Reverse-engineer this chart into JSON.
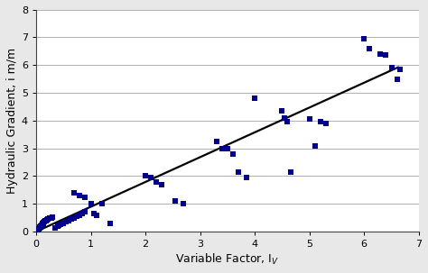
{
  "scatter_x": [
    0.02,
    0.03,
    0.04,
    0.05,
    0.06,
    0.07,
    0.08,
    0.09,
    0.1,
    0.11,
    0.12,
    0.13,
    0.14,
    0.15,
    0.16,
    0.18,
    0.2,
    0.22,
    0.25,
    0.28,
    0.3,
    0.35,
    0.4,
    0.42,
    0.45,
    0.5,
    0.55,
    0.6,
    0.65,
    0.7,
    0.75,
    0.8,
    0.85,
    0.9,
    0.7,
    0.8,
    0.9,
    1.0,
    1.05,
    1.1,
    1.2,
    1.35,
    2.0,
    2.1,
    2.2,
    2.3,
    2.55,
    2.7,
    3.3,
    3.4,
    3.5,
    3.6,
    3.7,
    3.85,
    4.0,
    4.5,
    4.55,
    4.6,
    4.65,
    5.0,
    5.1,
    5.2,
    5.3,
    6.0,
    6.1,
    6.3,
    6.4,
    6.5,
    6.6,
    6.65
  ],
  "scatter_y": [
    0.05,
    0.07,
    0.09,
    0.11,
    0.13,
    0.15,
    0.17,
    0.2,
    0.22,
    0.25,
    0.28,
    0.3,
    0.32,
    0.35,
    0.38,
    0.4,
    0.42,
    0.45,
    0.48,
    0.5,
    0.52,
    0.12,
    0.18,
    0.22,
    0.25,
    0.3,
    0.35,
    0.4,
    0.45,
    0.5,
    0.55,
    0.6,
    0.65,
    0.7,
    1.4,
    1.3,
    1.25,
    1.0,
    0.65,
    0.6,
    1.0,
    0.3,
    2.0,
    1.95,
    1.8,
    1.7,
    1.1,
    1.0,
    3.25,
    3.0,
    3.0,
    2.8,
    2.15,
    1.95,
    4.8,
    4.35,
    4.1,
    3.95,
    2.15,
    4.05,
    3.1,
    3.95,
    3.9,
    6.95,
    6.6,
    6.4,
    6.35,
    5.9,
    5.5,
    5.85
  ],
  "line_x": [
    0.0,
    6.62
  ],
  "line_y": [
    0.0,
    5.92
  ],
  "scatter_color": "#00008B",
  "line_color": "#000000",
  "xlim": [
    0,
    7
  ],
  "ylim": [
    0,
    8
  ],
  "xticks": [
    0,
    1,
    2,
    3,
    4,
    5,
    6,
    7
  ],
  "yticks": [
    0,
    1,
    2,
    3,
    4,
    5,
    6,
    7,
    8
  ],
  "grid_color": "#b0b0b0",
  "bg_color": "#ffffff",
  "fig_bg_color": "#e8e8e8",
  "marker_size": 16,
  "line_width": 1.6,
  "tick_fontsize": 8,
  "label_fontsize": 9
}
